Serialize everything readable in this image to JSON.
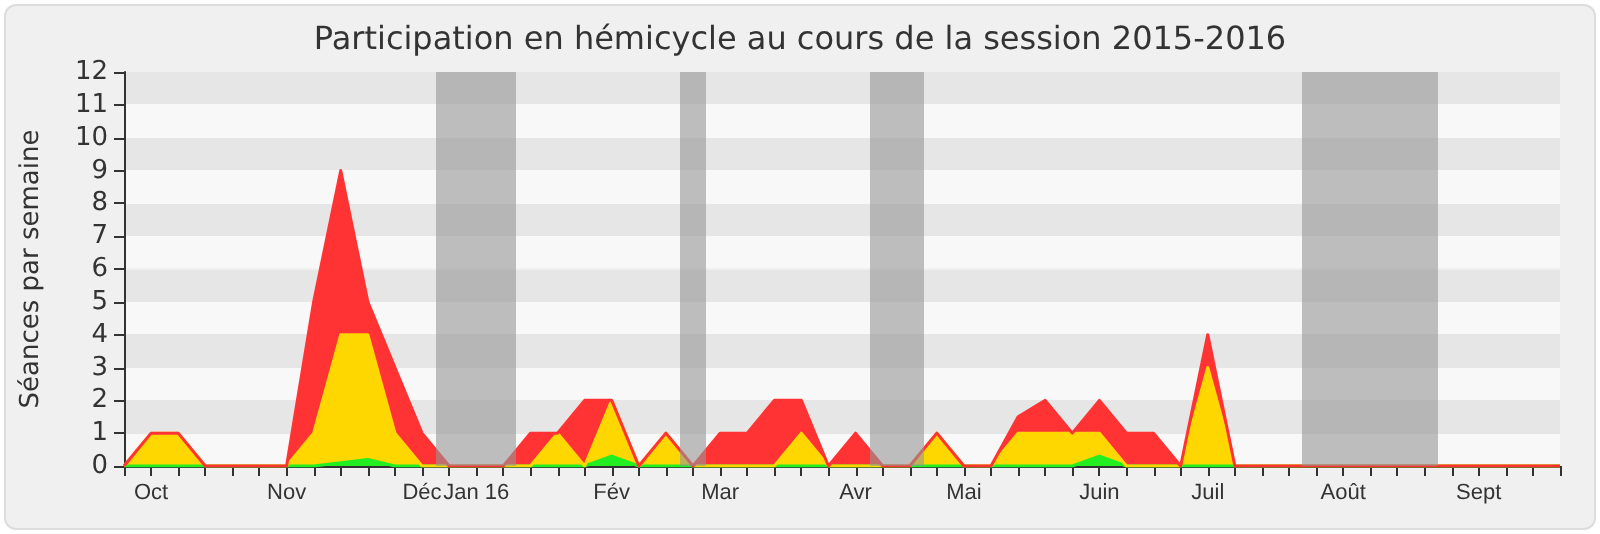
{
  "chart_data": {
    "type": "area",
    "title": "Participation en hémicycle au cours de la session 2015-2016",
    "ylabel": "Séances par semaine",
    "stacked": true,
    "marker": "none",
    "categories": [
      null,
      "Oct",
      null,
      null,
      null,
      null,
      "Nov",
      null,
      null,
      null,
      null,
      "Déc",
      null,
      "Jan 16",
      null,
      null,
      null,
      null,
      "Fév",
      null,
      null,
      null,
      "Mar",
      null,
      null,
      null,
      null,
      "Avr",
      null,
      null,
      null,
      "Mai",
      null,
      null,
      null,
      null,
      "Juin",
      null,
      null,
      null,
      "Juil",
      null,
      null,
      null,
      null,
      "Août",
      null,
      null,
      null,
      null,
      "Sept",
      null,
      null,
      null
    ],
    "ylim": [
      0,
      12
    ],
    "yticks": [
      0,
      1,
      2,
      3,
      4,
      5,
      6,
      7,
      8,
      9,
      10,
      11,
      12
    ],
    "series": [
      {
        "color": "#22ee22",
        "values": [
          0,
          0,
          0,
          0,
          0,
          0,
          0,
          0,
          0.1,
          0.2,
          0,
          0,
          0,
          0,
          0,
          0,
          0,
          0,
          0.3,
          0,
          0,
          0,
          0,
          0,
          0,
          0,
          0,
          0,
          0,
          0,
          0,
          0,
          0,
          0,
          0,
          0,
          0.3,
          0,
          0,
          0,
          0,
          0,
          0,
          0,
          0,
          0,
          0,
          0,
          0,
          0,
          0,
          0,
          0,
          0
        ]
      },
      {
        "color": "#ffd700",
        "values": [
          0,
          1,
          1,
          0,
          0,
          0,
          0,
          1,
          3.9,
          3.8,
          1,
          0,
          0,
          0,
          0,
          0,
          1,
          0,
          1.7,
          0,
          1,
          0,
          0,
          0,
          0,
          1,
          0,
          0,
          0,
          0,
          1,
          0,
          0,
          1,
          1,
          1,
          0.7,
          0,
          0,
          0,
          3,
          0,
          0,
          0,
          0,
          0,
          0,
          0,
          0,
          0,
          0,
          0,
          0,
          0
        ]
      },
      {
        "color": "#ff3333",
        "values": [
          0,
          0,
          0,
          0,
          0,
          0,
          0,
          4,
          5,
          1,
          2,
          1,
          0,
          0,
          0,
          1,
          0,
          2,
          0,
          0,
          0,
          0,
          1,
          1,
          2,
          1,
          0,
          1,
          0,
          0,
          0,
          0,
          0,
          0.5,
          1,
          0,
          1,
          1,
          1,
          0,
          1,
          0,
          0,
          0,
          0,
          0,
          0,
          0,
          0,
          0,
          0,
          0,
          0,
          0
        ]
      }
    ]
  }
}
